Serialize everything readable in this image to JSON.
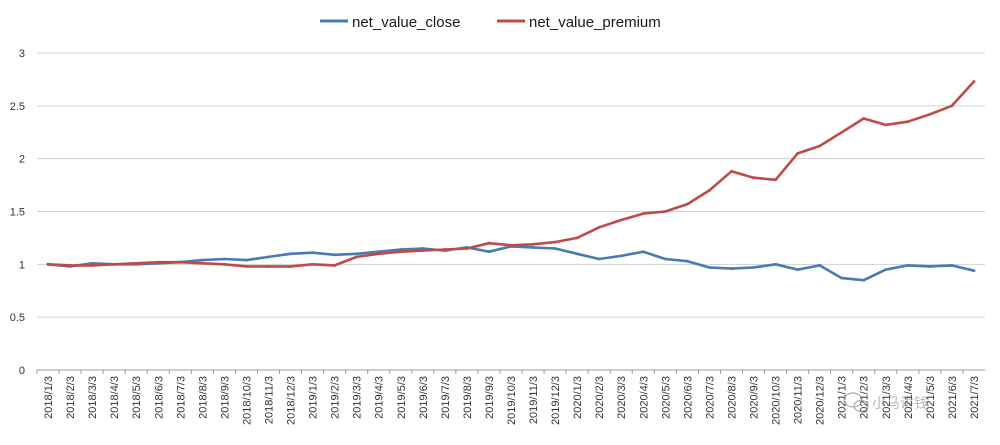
{
  "colors": {
    "close": "#4a79b4",
    "premium": "#be4b48",
    "grid": "#d0d0d0",
    "axis": "#999999"
  },
  "chart_data": {
    "type": "line",
    "title": "",
    "xlabel": "",
    "ylabel": "",
    "ylim": [
      0,
      3
    ],
    "yticks": [
      "0",
      "0.5",
      "1",
      "1.5",
      "2",
      "2.5",
      "3"
    ],
    "grid": true,
    "legend_position": "top",
    "x_tick_labels": [
      "2018/1/3",
      "2018/2/3",
      "2018/3/3",
      "2018/4/3",
      "2018/5/3",
      "2018/6/3",
      "2018/7/3",
      "2018/8/3",
      "2018/9/3",
      "2018/10/3",
      "2018/11/3",
      "2018/12/3",
      "2019/1/3",
      "2019/2/3",
      "2019/3/3",
      "2019/4/3",
      "2019/5/3",
      "2019/6/3",
      "2019/7/3",
      "2019/8/3",
      "2019/9/3",
      "2019/10/3",
      "2019/11/3",
      "2019/12/3",
      "2020/1/3",
      "2020/2/3",
      "2020/3/3",
      "2020/4/3",
      "2020/5/3",
      "2020/6/3",
      "2020/7/3",
      "2020/8/3",
      "2020/9/3",
      "2020/10/3",
      "2020/11/3",
      "2020/12/3",
      "2021/1/3",
      "2021/2/3",
      "2021/3/3",
      "2021/4/3",
      "2021/5/3",
      "2021/6/3",
      "2021/7/3"
    ],
    "series": [
      {
        "name": "net_value_close",
        "color": "#4a79b4",
        "points": [
          [
            "2018/1/3",
            1.0
          ],
          [
            "2018/2/3",
            0.98
          ],
          [
            "2018/3/3",
            1.01
          ],
          [
            "2018/4/3",
            1.0
          ],
          [
            "2018/5/3",
            1.0
          ],
          [
            "2018/6/3",
            1.01
          ],
          [
            "2018/7/3",
            1.02
          ],
          [
            "2018/8/3",
            1.04
          ],
          [
            "2018/9/3",
            1.05
          ],
          [
            "2018/10/3",
            1.04
          ],
          [
            "2018/11/3",
            1.07
          ],
          [
            "2018/12/3",
            1.1
          ],
          [
            "2019/1/3",
            1.11
          ],
          [
            "2019/2/3",
            1.09
          ],
          [
            "2019/3/3",
            1.1
          ],
          [
            "2019/4/3",
            1.12
          ],
          [
            "2019/5/3",
            1.14
          ],
          [
            "2019/6/3",
            1.15
          ],
          [
            "2019/7/3",
            1.13
          ],
          [
            "2019/8/3",
            1.16
          ],
          [
            "2019/9/3",
            1.12
          ],
          [
            "2019/10/3",
            1.17
          ],
          [
            "2019/11/3",
            1.16
          ],
          [
            "2019/12/3",
            1.15
          ],
          [
            "2020/1/3",
            1.1
          ],
          [
            "2020/2/3",
            1.05
          ],
          [
            "2020/3/3",
            1.08
          ],
          [
            "2020/4/3",
            1.12
          ],
          [
            "2020/5/3",
            1.05
          ],
          [
            "2020/6/3",
            1.03
          ],
          [
            "2020/7/3",
            0.97
          ],
          [
            "2020/8/3",
            0.96
          ],
          [
            "2020/9/3",
            0.97
          ],
          [
            "2020/10/3",
            1.0
          ],
          [
            "2020/11/3",
            0.95
          ],
          [
            "2020/12/3",
            0.99
          ],
          [
            "2021/1/3",
            0.87
          ],
          [
            "2021/2/3",
            0.85
          ],
          [
            "2021/3/3",
            0.95
          ],
          [
            "2021/4/3",
            0.99
          ],
          [
            "2021/5/3",
            0.98
          ],
          [
            "2021/6/3",
            0.99
          ],
          [
            "2021/7/3",
            0.94
          ]
        ]
      },
      {
        "name": "net_value_premium",
        "color": "#be4b48",
        "points": [
          [
            "2018/1/3",
            1.0
          ],
          [
            "2018/2/3",
            0.99
          ],
          [
            "2018/3/3",
            0.99
          ],
          [
            "2018/4/3",
            1.0
          ],
          [
            "2018/5/3",
            1.01
          ],
          [
            "2018/6/3",
            1.02
          ],
          [
            "2018/7/3",
            1.02
          ],
          [
            "2018/8/3",
            1.01
          ],
          [
            "2018/9/3",
            1.0
          ],
          [
            "2018/10/3",
            0.98
          ],
          [
            "2018/11/3",
            0.98
          ],
          [
            "2018/12/3",
            0.98
          ],
          [
            "2019/1/3",
            1.0
          ],
          [
            "2019/2/3",
            0.99
          ],
          [
            "2019/3/3",
            1.07
          ],
          [
            "2019/4/3",
            1.1
          ],
          [
            "2019/5/3",
            1.12
          ],
          [
            "2019/6/3",
            1.13
          ],
          [
            "2019/7/3",
            1.14
          ],
          [
            "2019/8/3",
            1.15
          ],
          [
            "2019/9/3",
            1.2
          ],
          [
            "2019/10/3",
            1.18
          ],
          [
            "2019/11/3",
            1.19
          ],
          [
            "2019/12/3",
            1.21
          ],
          [
            "2020/1/3",
            1.25
          ],
          [
            "2020/2/3",
            1.35
          ],
          [
            "2020/3/3",
            1.42
          ],
          [
            "2020/4/3",
            1.48
          ],
          [
            "2020/5/3",
            1.5
          ],
          [
            "2020/6/3",
            1.57
          ],
          [
            "2020/7/3",
            1.7
          ],
          [
            "2020/8/3",
            1.88
          ],
          [
            "2020/9/3",
            1.82
          ],
          [
            "2020/10/3",
            1.8
          ],
          [
            "2020/11/3",
            2.05
          ],
          [
            "2020/12/3",
            2.12
          ],
          [
            "2021/1/3",
            2.25
          ],
          [
            "2021/2/3",
            2.38
          ],
          [
            "2021/3/3",
            2.32
          ],
          [
            "2021/4/3",
            2.35
          ],
          [
            "2021/5/3",
            2.42
          ],
          [
            "2021/6/3",
            2.5
          ],
          [
            "2021/7/3",
            2.73
          ]
        ]
      }
    ]
  },
  "watermark": {
    "icon": "wechat-icon",
    "text": "小马讲钱"
  }
}
